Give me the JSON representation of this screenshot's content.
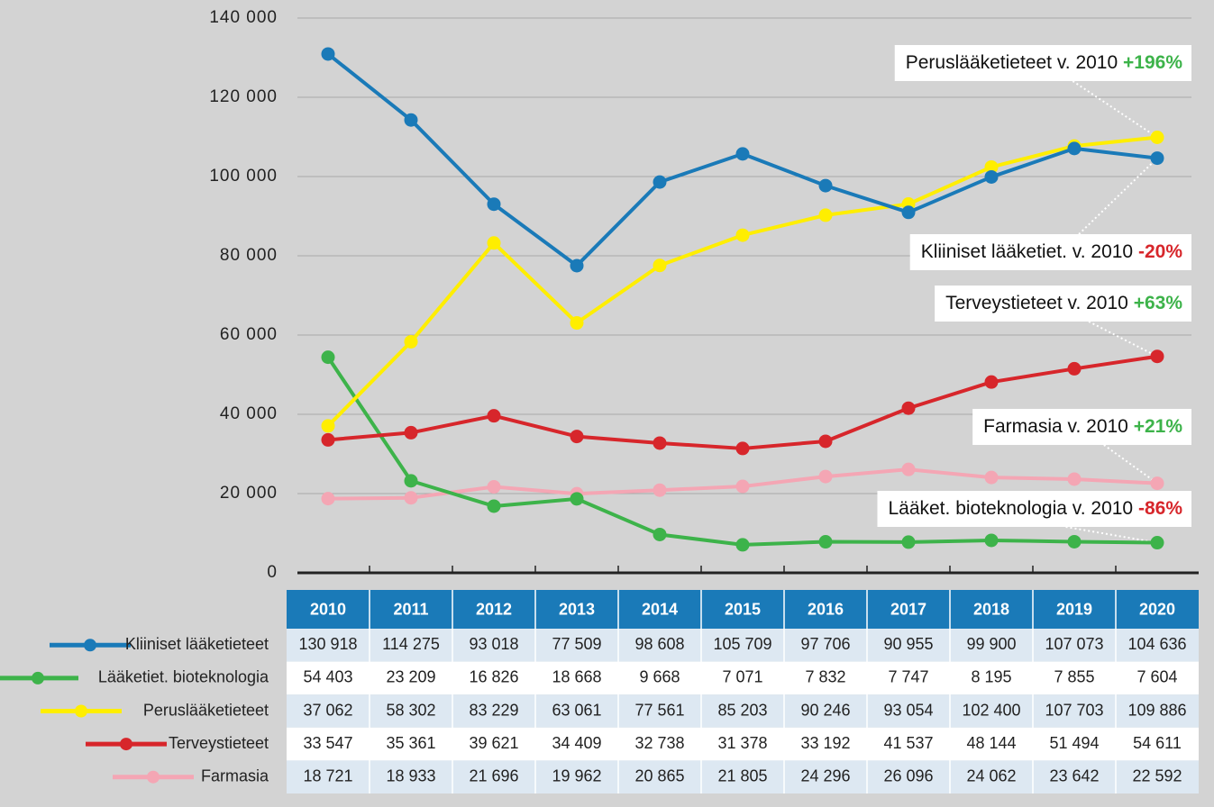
{
  "chart_data": {
    "type": "line",
    "categories": [
      "2010",
      "2011",
      "2012",
      "2013",
      "2014",
      "2015",
      "2016",
      "2017",
      "2018",
      "2019",
      "2020"
    ],
    "series": [
      {
        "name": "Kliiniset lääketieteet",
        "color": "#1a7ab8",
        "values": [
          130918,
          114275,
          93018,
          77509,
          98608,
          105709,
          97706,
          90955,
          99900,
          107073,
          104636
        ],
        "value_labels": [
          "130 918",
          "114 275",
          "93 018",
          "77 509",
          "98 608",
          "105 709",
          "97 706",
          "90 955",
          "99 900",
          "107 073",
          "104 636"
        ]
      },
      {
        "name": "Lääketiet. bioteknologia",
        "color": "#3db34a",
        "values": [
          54403,
          23209,
          16826,
          18668,
          9668,
          7071,
          7832,
          7747,
          8195,
          7855,
          7604
        ],
        "value_labels": [
          "54 403",
          "23 209",
          "16 826",
          "18 668",
          "9 668",
          "7 071",
          "7 832",
          "7 747",
          "8 195",
          "7 855",
          "7 604"
        ]
      },
      {
        "name": "Peruslääketieteet",
        "color": "#ffee00",
        "values": [
          37062,
          58302,
          83229,
          63061,
          77561,
          85203,
          90246,
          93054,
          102400,
          107703,
          109886
        ],
        "value_labels": [
          "37 062",
          "58 302",
          "83 229",
          "63 061",
          "77 561",
          "85 203",
          "90 246",
          "93 054",
          "102 400",
          "107 703",
          "109 886"
        ]
      },
      {
        "name": "Terveystieteet",
        "color": "#d7262b",
        "values": [
          33547,
          35361,
          39621,
          34409,
          32738,
          31378,
          33192,
          41537,
          48144,
          51494,
          54611
        ],
        "value_labels": [
          "33 547",
          "35 361",
          "39 621",
          "34 409",
          "32 738",
          "31 378",
          "33 192",
          "41 537",
          "48 144",
          "51 494",
          "54 611"
        ]
      },
      {
        "name": "Farmasia",
        "color": "#f4a6b4",
        "values": [
          18721,
          18933,
          21696,
          19962,
          20865,
          21805,
          24296,
          26096,
          24062,
          23642,
          22592
        ],
        "value_labels": [
          "18 721",
          "18 933",
          "21 696",
          "19 962",
          "20 865",
          "21 805",
          "24 296",
          "26 096",
          "24 062",
          "23 642",
          "22 592"
        ]
      }
    ],
    "ylim": [
      0,
      140000
    ],
    "yticks": [
      0,
      {
        "value": 20000,
        "label": "20 000"
      },
      {
        "value": 40000,
        "label": "40 000"
      },
      {
        "value": 60000,
        "label": "60 000"
      },
      {
        "value": 80000,
        "label": "80 000"
      },
      {
        "value": 100000,
        "label": "100 000"
      },
      {
        "value": 120000,
        "label": "120 000"
      },
      {
        "value": 140000,
        "label": "140 000"
      }
    ],
    "grid": true,
    "annotations": [
      {
        "text": "Peruslääketieteet v. 2010",
        "change": "+196%",
        "color": "#3db34a"
      },
      {
        "text": "Kliiniset lääketiet. v. 2010",
        "change": "-20%",
        "color": "#d7262b"
      },
      {
        "text": "Terveystieteet v. 2010",
        "change": "+63%",
        "color": "#3db34a"
      },
      {
        "text": "Farmasia v. 2010",
        "change": "+21%",
        "color": "#3db34a"
      },
      {
        "text": "Lääket. bioteknologia v. 2010",
        "change": "-86%",
        "color": "#d7262b"
      }
    ]
  }
}
